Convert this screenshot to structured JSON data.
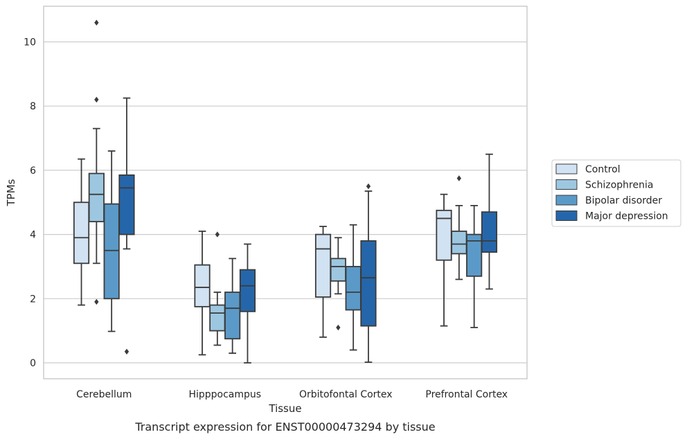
{
  "chart_data": {
    "type": "box",
    "ylabel": "TPMs",
    "xlabel": "Tissue",
    "caption": "Transcript expression for ENST00000473294 by tissue",
    "ylim": [
      -0.5,
      11.1
    ],
    "yticks": [
      0,
      2,
      4,
      6,
      8,
      10
    ],
    "grid": "horizontal",
    "legend_placement": "right",
    "categories": [
      "Cerebellum",
      "Hipppocampus",
      "Orbitofontal Cortex",
      "Prefrontal Cortex"
    ],
    "series": [
      {
        "name": "Control",
        "color": "#d1e2f2",
        "boxes": [
          {
            "whislo": 1.8,
            "q1": 3.1,
            "med": 3.9,
            "q3": 5.0,
            "whishi": 6.35,
            "fliers": []
          },
          {
            "whislo": 0.25,
            "q1": 1.75,
            "med": 2.35,
            "q3": 3.05,
            "whishi": 4.1,
            "fliers": []
          },
          {
            "whislo": 0.8,
            "q1": 2.05,
            "med": 3.55,
            "q3": 4.0,
            "whishi": 4.25,
            "fliers": []
          },
          {
            "whislo": 1.15,
            "q1": 3.2,
            "med": 4.5,
            "q3": 4.75,
            "whishi": 5.25,
            "fliers": []
          }
        ]
      },
      {
        "name": "Schizophrenia",
        "color": "#9dc7e0",
        "boxes": [
          {
            "whislo": 3.1,
            "q1": 4.4,
            "med": 5.25,
            "q3": 5.9,
            "whishi": 7.3,
            "fliers": [
              1.9,
              8.2,
              10.6
            ]
          },
          {
            "whislo": 0.55,
            "q1": 1.0,
            "med": 1.55,
            "q3": 1.8,
            "whishi": 2.2,
            "fliers": [
              4.0
            ]
          },
          {
            "whislo": 2.15,
            "q1": 2.55,
            "med": 3.0,
            "q3": 3.25,
            "whishi": 3.9,
            "fliers": [
              1.1
            ]
          },
          {
            "whislo": 2.6,
            "q1": 3.4,
            "med": 3.7,
            "q3": 4.1,
            "whishi": 4.9,
            "fliers": [
              5.75
            ]
          }
        ]
      },
      {
        "name": "Bipolar disorder",
        "color": "#5b9ac8",
        "boxes": [
          {
            "whislo": 0.98,
            "q1": 2.0,
            "med": 3.5,
            "q3": 4.95,
            "whishi": 6.6,
            "fliers": []
          },
          {
            "whislo": 0.3,
            "q1": 0.75,
            "med": 1.7,
            "q3": 2.2,
            "whishi": 3.25,
            "fliers": []
          },
          {
            "whislo": 0.4,
            "q1": 1.65,
            "med": 2.2,
            "q3": 3.0,
            "whishi": 4.3,
            "fliers": []
          },
          {
            "whislo": 1.1,
            "q1": 2.7,
            "med": 3.8,
            "q3": 4.0,
            "whishi": 4.9,
            "fliers": []
          }
        ]
      },
      {
        "name": "Major depression",
        "color": "#2566aa",
        "boxes": [
          {
            "whislo": 3.55,
            "q1": 4.0,
            "med": 5.45,
            "q3": 5.85,
            "whishi": 8.25,
            "fliers": [
              0.35
            ]
          },
          {
            "whislo": 0.0,
            "q1": 1.6,
            "med": 2.4,
            "q3": 2.9,
            "whishi": 3.7,
            "fliers": []
          },
          {
            "whislo": 0.02,
            "q1": 1.15,
            "med": 2.65,
            "q3": 3.8,
            "whishi": 5.35,
            "fliers": [
              5.5
            ]
          },
          {
            "whislo": 2.3,
            "q1": 3.45,
            "med": 3.8,
            "q3": 4.7,
            "whishi": 6.5,
            "fliers": []
          }
        ]
      }
    ]
  }
}
